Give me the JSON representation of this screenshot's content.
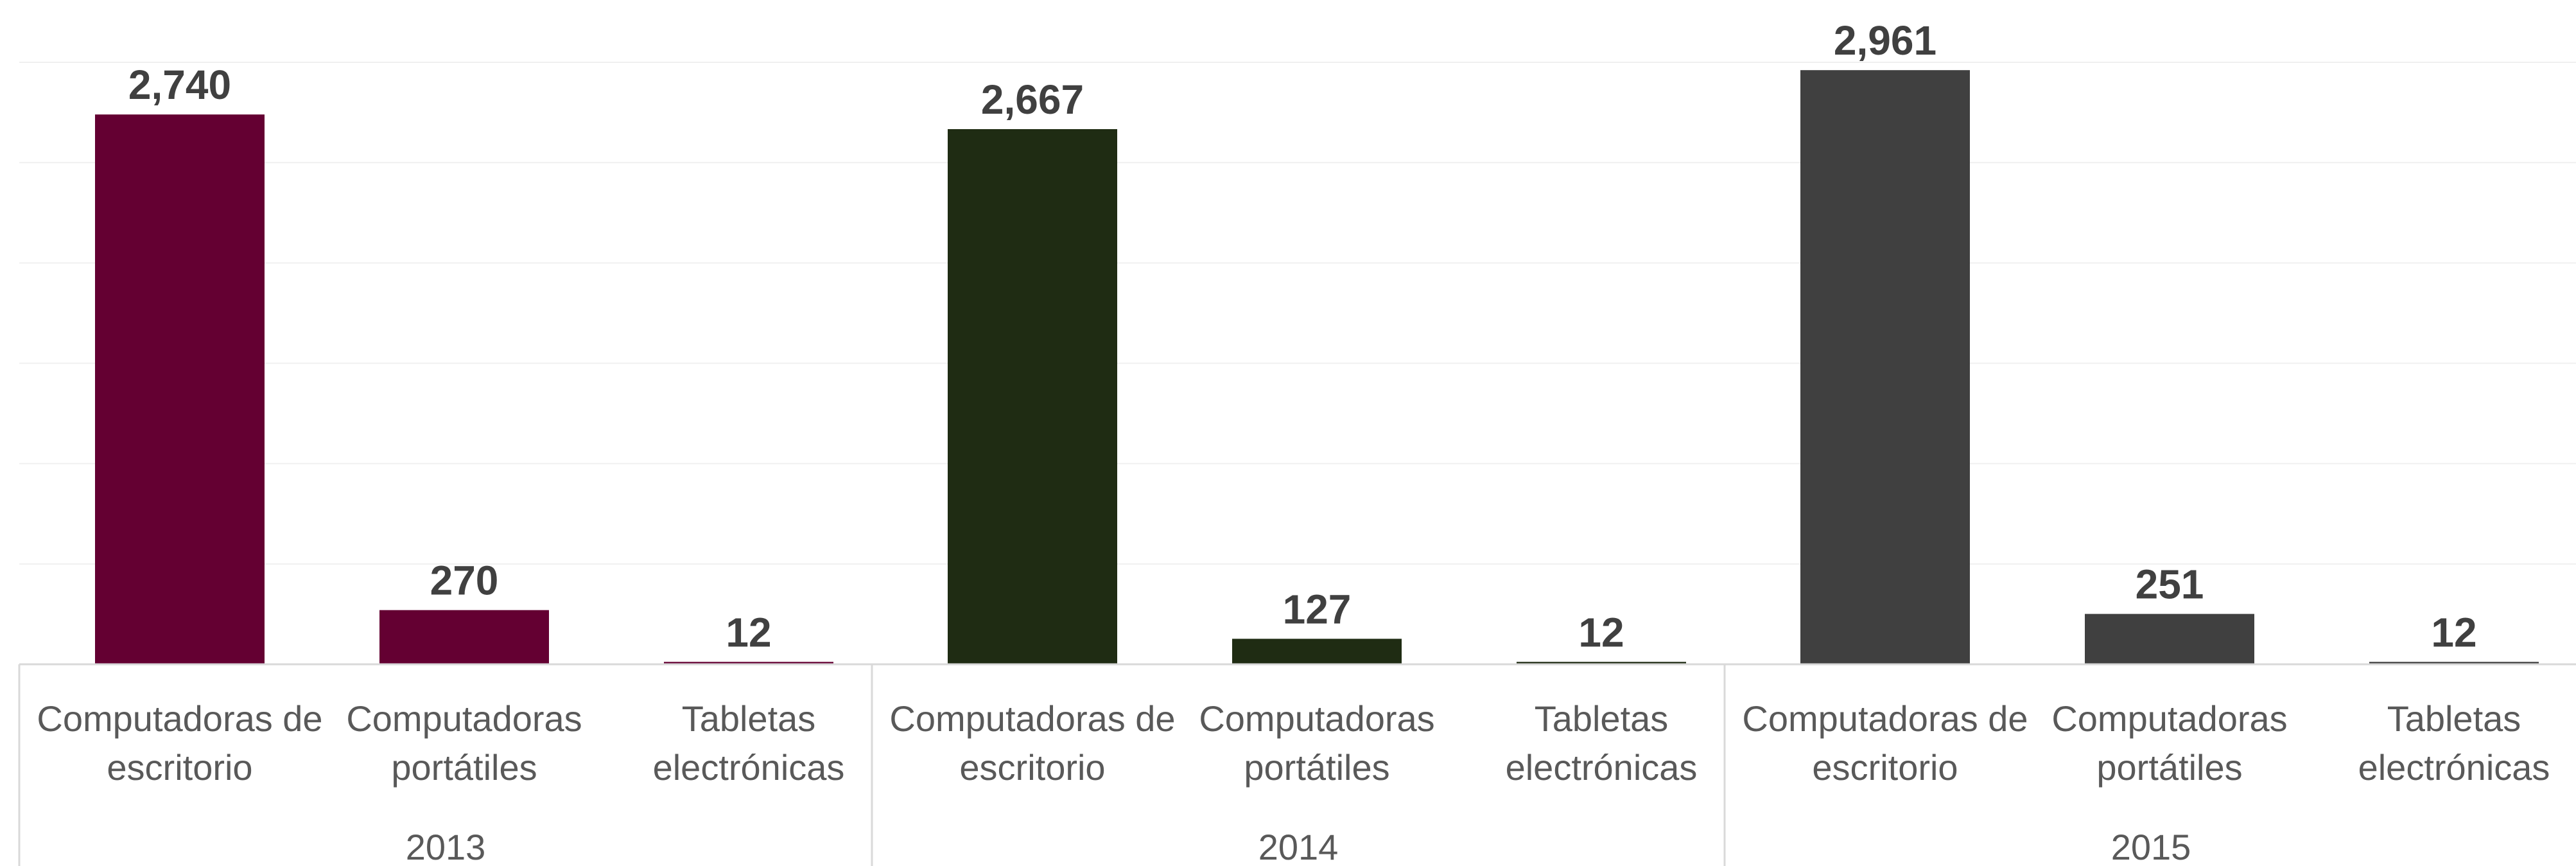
{
  "chart_data": {
    "type": "bar",
    "groups": [
      {
        "label": "2013",
        "color": "#640032",
        "categories": [
          "Computadoras de escritorio",
          "Computadoras portátiles",
          "Tabletas electrónicas"
        ],
        "category_lines": [
          [
            "Computadoras de",
            "escritorio"
          ],
          [
            "Computadoras",
            "portátiles"
          ],
          [
            "Tabletas",
            "electrónicas"
          ]
        ],
        "values": [
          2740,
          270,
          12
        ],
        "value_labels": [
          "2,740",
          "270",
          "12"
        ]
      },
      {
        "label": "2014",
        "color": "#1f2c13",
        "categories": [
          "Computadoras de escritorio",
          "Computadoras portátiles",
          "Tabletas electrónicas"
        ],
        "category_lines": [
          [
            "Computadoras de",
            "escritorio"
          ],
          [
            "Computadoras",
            "portátiles"
          ],
          [
            "Tabletas",
            "electrónicas"
          ]
        ],
        "values": [
          2667,
          127,
          12
        ],
        "value_labels": [
          "2,667",
          "127",
          "12"
        ]
      },
      {
        "label": "2015",
        "color": "#404040",
        "categories": [
          "Computadoras de escritorio",
          "Computadoras portátiles",
          "Tabletas electrónicas"
        ],
        "category_lines": [
          [
            "Computadoras de",
            "escritorio"
          ],
          [
            "Computadoras",
            "portátiles"
          ],
          [
            "Tabletas",
            "electrónicas"
          ]
        ],
        "values": [
          2961,
          251,
          12
        ],
        "value_labels": [
          "2,961",
          "251",
          "12"
        ]
      }
    ],
    "title": "",
    "xlabel": "",
    "ylabel": "",
    "ylim": [
      0,
      3000
    ],
    "gridlines": true,
    "legend": "none"
  }
}
